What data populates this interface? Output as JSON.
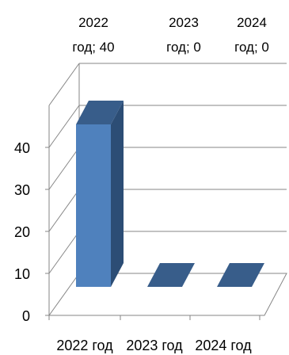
{
  "chart_data": {
    "type": "bar",
    "style": "3d-column",
    "categories": [
      "2022 год",
      "2023 год",
      "2024 год"
    ],
    "values": [
      40,
      0,
      0
    ],
    "data_labels": [
      [
        "2022",
        "год; 40"
      ],
      [
        "2023",
        "год; 0"
      ],
      [
        "2024",
        "год; 0"
      ]
    ],
    "yticks": [
      "0",
      "10",
      "20",
      "30",
      "40"
    ],
    "ylim": [
      0,
      40
    ],
    "grid": true,
    "legend": "none",
    "colors": {
      "bar_front": "#4f81bd",
      "bar_top": "#385d8a",
      "bar_side": "#2c4d75",
      "grid": "#868686",
      "axis": "#868686"
    }
  }
}
